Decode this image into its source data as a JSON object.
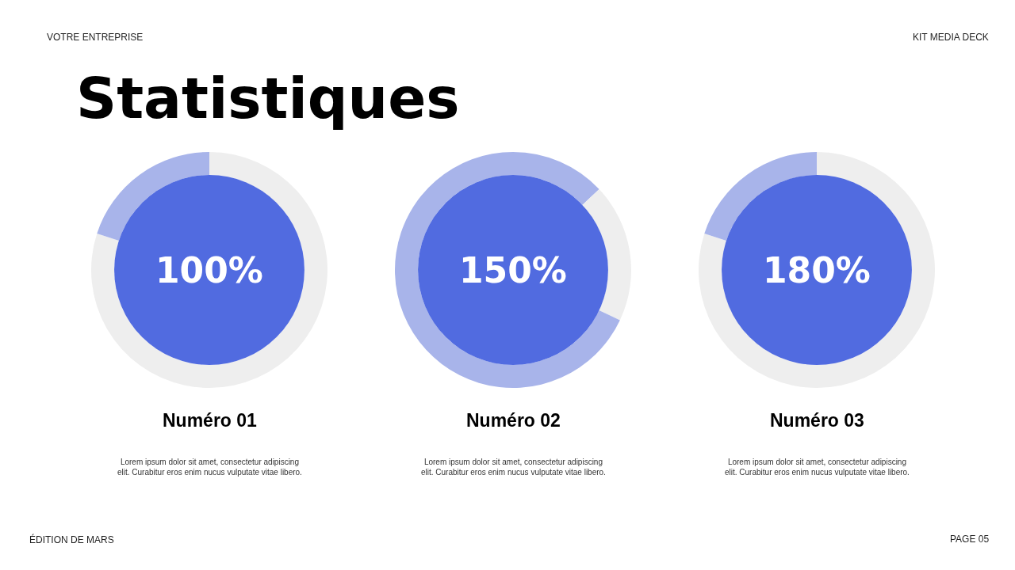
{
  "chart_data": [
    {
      "type": "other",
      "title": "Statistiques",
      "annotations": [
        "VOTRE ENTREPRISE",
        "KIT MEDIA DECK",
        "ÉDITION DE MARS",
        "PAGE 05"
      ]
    },
    {
      "type": "donut",
      "title": "Numéro 01",
      "subtitle": "Lorem ipsum dolor sit amet, consectetur adipiscing elit. Curabitur eros enim nucus vulputate vitae libero.",
      "annotations": [
        "100%"
      ],
      "categories": [
        null,
        null
      ],
      "values": [
        80,
        20
      ],
      "colors": [
        "#eeeeee",
        "#a8b4ea"
      ]
    },
    {
      "type": "donut",
      "title": "Numéro 02",
      "subtitle": "Lorem ipsum dolor sit amet, consectetur adipiscing elit. Curabitur eros enim nucus vulputate vitae libero.",
      "annotations": [
        "150%"
      ],
      "categories": [
        null,
        null,
        null
      ],
      "values": [
        13,
        19,
        68
      ],
      "colors": [
        "#a8b4ea",
        "#eeeeee",
        "#a8b4ea"
      ]
    },
    {
      "type": "donut",
      "title": "Numéro 03",
      "subtitle": "Lorem ipsum dolor sit amet, consectetur adipiscing elit. Curabitur eros enim nucus vulputate vitae libero.",
      "annotations": [
        "180%"
      ],
      "categories": [
        null,
        null
      ],
      "values": [
        80,
        20
      ],
      "colors": [
        "#eeeeee",
        "#a8b4ea"
      ]
    }
  ]
}
